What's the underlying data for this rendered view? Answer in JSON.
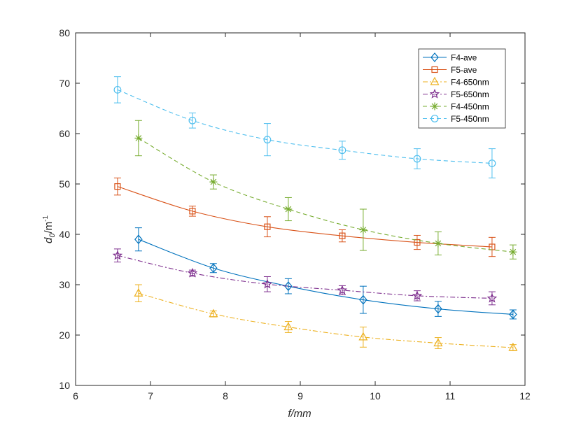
{
  "chart_data": {
    "type": "line",
    "xlabel": "f/mm",
    "ylabel": "d0/m-1",
    "ylabel_main": "d",
    "ylabel_sub": "0",
    "ylabel_unit": "/m",
    "ylabel_sup": "-1",
    "xlim": [
      6,
      12
    ],
    "ylim": [
      10,
      80
    ],
    "xticks": [
      6,
      7,
      8,
      9,
      10,
      11,
      12
    ],
    "yticks": [
      10,
      20,
      30,
      40,
      50,
      60,
      70,
      80
    ],
    "grid": false,
    "legend_position": "top-right",
    "series": [
      {
        "name": "F4-ave",
        "color": "#0072BD",
        "marker": "diamond",
        "line": "solid",
        "x": [
          6.84,
          7.84,
          8.84,
          9.84,
          10.84,
          11.84
        ],
        "y": [
          39.0,
          33.3,
          29.7,
          27.0,
          25.2,
          24.1
        ],
        "err": [
          2.3,
          0.9,
          1.5,
          2.7,
          1.5,
          0.9
        ]
      },
      {
        "name": "F5-ave",
        "color": "#D95319",
        "marker": "square",
        "line": "solid",
        "x": [
          6.56,
          7.56,
          8.56,
          9.56,
          10.56,
          11.56
        ],
        "y": [
          49.5,
          44.6,
          41.5,
          39.7,
          38.4,
          37.5
        ],
        "err": [
          1.7,
          1.0,
          2.0,
          1.2,
          1.4,
          1.9
        ]
      },
      {
        "name": "F4-650nm",
        "color": "#EDB120",
        "marker": "triangle",
        "line": "dashdot",
        "x": [
          6.84,
          7.84,
          8.84,
          9.84,
          10.84,
          11.84
        ],
        "y": [
          28.3,
          24.2,
          21.6,
          19.6,
          18.4,
          17.5
        ],
        "err": [
          1.7,
          0.6,
          1.1,
          2.0,
          1.1,
          0.6
        ]
      },
      {
        "name": "F5-650nm",
        "color": "#7E2F8E",
        "marker": "star",
        "line": "dashdot",
        "x": [
          6.56,
          7.56,
          8.56,
          9.56,
          10.56,
          11.56
        ],
        "y": [
          35.8,
          32.3,
          30.1,
          28.9,
          27.8,
          27.3
        ],
        "err": [
          1.3,
          0.6,
          1.5,
          0.9,
          1.0,
          1.3
        ]
      },
      {
        "name": "F4-450nm",
        "color": "#77AC30",
        "marker": "asterisk",
        "line": "dashed",
        "x": [
          6.84,
          7.84,
          8.84,
          9.84,
          10.84,
          11.84
        ],
        "y": [
          59.1,
          50.4,
          45.0,
          40.9,
          38.2,
          36.5
        ],
        "err": [
          3.5,
          1.4,
          2.3,
          4.1,
          2.3,
          1.4
        ]
      },
      {
        "name": "F5-450nm",
        "color": "#4DBEEE",
        "marker": "circle",
        "line": "dashed",
        "x": [
          6.56,
          7.56,
          8.56,
          9.56,
          10.56,
          11.56
        ],
        "y": [
          68.7,
          62.6,
          58.8,
          56.7,
          55.0,
          54.1
        ],
        "err": [
          2.6,
          1.5,
          3.2,
          1.8,
          2.0,
          2.9
        ]
      }
    ]
  }
}
